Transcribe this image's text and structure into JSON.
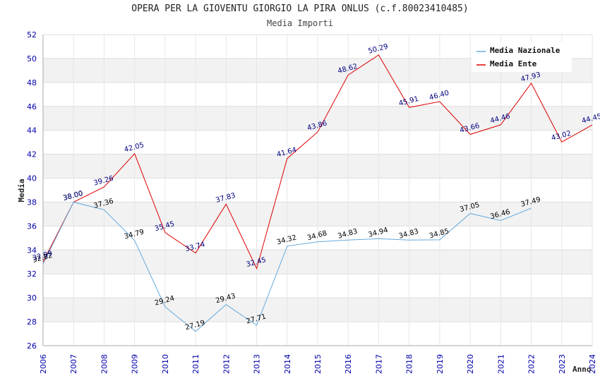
{
  "chart_data": {
    "type": "line",
    "title": "OPERA PER LA GIOVENTU GIORGIO LA PIRA ONLUS (c.f.80023410485)",
    "subtitle": "Media Importi",
    "xlabel": "Anno",
    "ylabel": "Media",
    "ylim": [
      26,
      52
    ],
    "yticks": [
      26,
      28,
      30,
      32,
      34,
      36,
      38,
      40,
      42,
      44,
      46,
      48,
      50,
      52
    ],
    "x": [
      2006,
      2007,
      2008,
      2009,
      2010,
      2011,
      2012,
      2013,
      2014,
      2015,
      2016,
      2017,
      2018,
      2019,
      2020,
      2021,
      2022,
      2023,
      2024
    ],
    "legend_position": "top-right",
    "grid": true,
    "series": [
      {
        "name": "Media Nazionale",
        "color": "#66aadd",
        "values": [
          32.82,
          38.0,
          37.36,
          34.79,
          29.24,
          27.19,
          29.43,
          27.71,
          34.32,
          34.68,
          34.83,
          34.94,
          34.83,
          34.85,
          37.05,
          36.46,
          37.49,
          null,
          null
        ],
        "labels": [
          "32.82",
          "38.00",
          "37.36",
          "34.79",
          "29.24",
          "27.19",
          "29.43",
          "27.71",
          "34.32",
          "34.68",
          "34.83",
          "34.94",
          "34.83",
          "34.85",
          "37.05",
          "36.46",
          "37.49",
          "",
          ""
        ]
      },
      {
        "name": "Media Ente",
        "color": "#dd0000",
        "values": [
          32.99,
          38.0,
          39.26,
          42.05,
          35.45,
          33.74,
          37.83,
          32.45,
          41.64,
          43.86,
          48.62,
          50.29,
          45.91,
          46.4,
          43.66,
          44.46,
          47.93,
          43.02,
          44.45
        ],
        "labels": [
          "32.99",
          "38.00",
          "39.26",
          "42.05",
          "35.45",
          "33.74",
          "37.83",
          "32.45",
          "41.64",
          "43.86",
          "48.62",
          "50.29",
          "45.91",
          "46.40",
          "43.66",
          "44.46",
          "47.93",
          "43.02",
          "44.45"
        ]
      }
    ]
  }
}
